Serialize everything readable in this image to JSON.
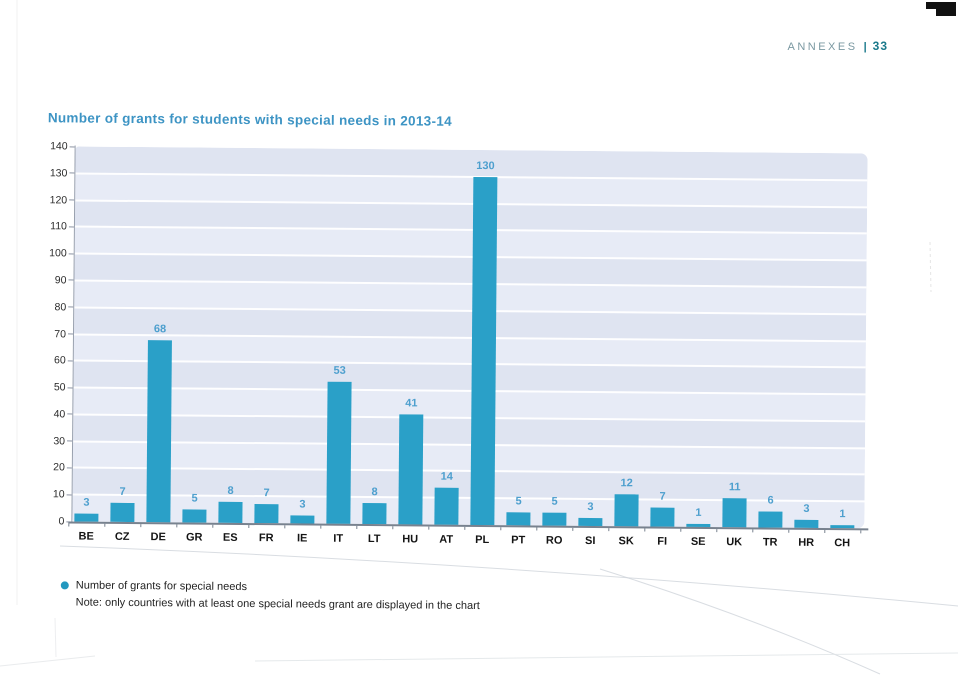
{
  "header": {
    "annexes_label": "ANNEXES",
    "separator": "|",
    "page_number": "33"
  },
  "chart_data": {
    "type": "bar",
    "title": "Number of grants for students with special needs in 2013-14",
    "categories": [
      "BE",
      "CZ",
      "DE",
      "GR",
      "ES",
      "FR",
      "IE",
      "IT",
      "LT",
      "HU",
      "AT",
      "PL",
      "PT",
      "RO",
      "SI",
      "SK",
      "FI",
      "SE",
      "UK",
      "TR",
      "HR",
      "CH"
    ],
    "values": [
      3,
      7,
      68,
      5,
      8,
      7,
      3,
      53,
      8,
      41,
      14,
      130,
      5,
      5,
      3,
      12,
      7,
      1,
      11,
      6,
      3,
      1
    ],
    "xlabel": "",
    "ylabel": "",
    "ylim": [
      0,
      140
    ],
    "y_ticks": [
      0,
      10,
      20,
      30,
      40,
      50,
      60,
      70,
      80,
      90,
      100,
      110,
      120,
      130,
      140
    ],
    "grid": true,
    "legend_position": "bottom-left",
    "colors": {
      "bar": "#2aa0c8",
      "value_label": "#4d9fce",
      "title": "#3d94c4",
      "plot_band_dark": "#dfe4f1",
      "plot_band_light": "#e7ebf6",
      "legend_marker": "#2398bf"
    },
    "legend": {
      "label": "Number of grants for special needs"
    },
    "note": "Note: only countries with at least one special needs grant are displayed in the chart"
  }
}
